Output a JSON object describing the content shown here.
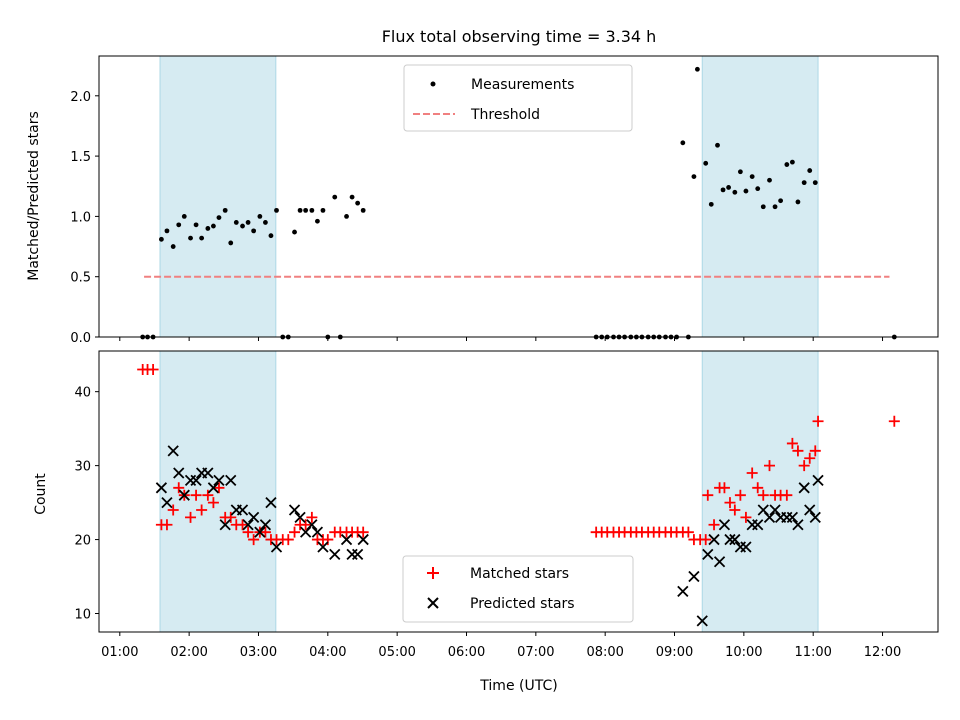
{
  "chart_data": {
    "title": "Flux total observing time = 3.34 h",
    "xlabel": "Time (UTC)",
    "x_ticks": [
      "01:00",
      "02:00",
      "03:00",
      "04:00",
      "05:00",
      "06:00",
      "07:00",
      "08:00",
      "09:00",
      "10:00",
      "11:00",
      "12:00"
    ],
    "x_range_hours": [
      0.7,
      12.8
    ],
    "observing_windows_hours": [
      [
        1.58,
        3.25
      ],
      [
        9.4,
        11.07
      ]
    ],
    "colors": {
      "window": "#add8e6",
      "measurement": "#000000",
      "threshold": "#f08080",
      "matched": "#ff0000",
      "predicted": "#000000"
    },
    "top": {
      "type": "scatter",
      "ylabel": "Matched/Predicted stars",
      "ylim": [
        0,
        2.33
      ],
      "y_ticks": [
        "0.0",
        "0.5",
        "1.0",
        "1.5",
        "2.0"
      ],
      "legend": {
        "measurements": "Measurements",
        "threshold": "Threshold"
      },
      "threshold": 0.5,
      "threshold_range_hours": [
        1.35,
        12.1
      ],
      "measurements": [
        [
          1.33,
          0
        ],
        [
          1.4,
          0
        ],
        [
          1.48,
          0
        ],
        [
          1.6,
          0.81
        ],
        [
          1.68,
          0.88
        ],
        [
          1.77,
          0.75
        ],
        [
          1.85,
          0.93
        ],
        [
          1.93,
          1.0
        ],
        [
          2.02,
          0.82
        ],
        [
          2.1,
          0.93
        ],
        [
          2.18,
          0.82
        ],
        [
          2.27,
          0.9
        ],
        [
          2.35,
          0.92
        ],
        [
          2.43,
          0.99
        ],
        [
          2.52,
          1.05
        ],
        [
          2.6,
          0.78
        ],
        [
          2.68,
          0.95
        ],
        [
          2.77,
          0.92
        ],
        [
          2.85,
          0.95
        ],
        [
          2.93,
          0.88
        ],
        [
          3.02,
          1.0
        ],
        [
          3.1,
          0.95
        ],
        [
          3.18,
          0.84
        ],
        [
          3.26,
          1.05
        ],
        [
          3.35,
          0
        ],
        [
          3.43,
          0
        ],
        [
          3.52,
          0.87
        ],
        [
          3.6,
          1.05
        ],
        [
          3.68,
          1.05
        ],
        [
          3.77,
          1.05
        ],
        [
          3.85,
          0.96
        ],
        [
          3.93,
          1.05
        ],
        [
          4.0,
          0
        ],
        [
          4.18,
          0
        ],
        [
          4.1,
          1.16
        ],
        [
          4.27,
          1.0
        ],
        [
          4.35,
          1.16
        ],
        [
          4.43,
          1.11
        ],
        [
          4.51,
          1.05
        ],
        [
          7.87,
          0
        ],
        [
          7.95,
          0
        ],
        [
          8.03,
          0
        ],
        [
          8.12,
          0
        ],
        [
          8.2,
          0
        ],
        [
          8.28,
          0
        ],
        [
          8.37,
          0
        ],
        [
          8.45,
          0
        ],
        [
          8.53,
          0
        ],
        [
          8.62,
          0
        ],
        [
          8.7,
          0
        ],
        [
          8.78,
          0
        ],
        [
          8.87,
          0
        ],
        [
          8.95,
          0
        ],
        [
          9.03,
          0
        ],
        [
          9.2,
          0
        ],
        [
          9.12,
          1.61
        ],
        [
          9.28,
          1.33
        ],
        [
          9.33,
          2.22
        ],
        [
          9.45,
          1.44
        ],
        [
          9.53,
          1.1
        ],
        [
          9.62,
          1.59
        ],
        [
          9.7,
          1.22
        ],
        [
          9.78,
          1.24
        ],
        [
          9.87,
          1.2
        ],
        [
          9.95,
          1.37
        ],
        [
          10.03,
          1.21
        ],
        [
          10.12,
          1.33
        ],
        [
          10.2,
          1.23
        ],
        [
          10.28,
          1.08
        ],
        [
          10.37,
          1.3
        ],
        [
          10.45,
          1.08
        ],
        [
          10.53,
          1.13
        ],
        [
          10.62,
          1.43
        ],
        [
          10.7,
          1.45
        ],
        [
          10.78,
          1.12
        ],
        [
          10.87,
          1.28
        ],
        [
          10.95,
          1.38
        ],
        [
          11.03,
          1.28
        ],
        [
          12.17,
          0
        ]
      ]
    },
    "bottom": {
      "type": "scatter",
      "ylabel": "Count",
      "ylim": [
        7.5,
        45.5
      ],
      "y_ticks": [
        "10",
        "20",
        "30",
        "40"
      ],
      "legend": {
        "matched": "Matched stars",
        "predicted": "Predicted stars"
      },
      "matched": [
        [
          1.33,
          43
        ],
        [
          1.4,
          43
        ],
        [
          1.48,
          43
        ],
        [
          1.6,
          22
        ],
        [
          1.68,
          22
        ],
        [
          1.77,
          24
        ],
        [
          1.85,
          27
        ],
        [
          1.93,
          26
        ],
        [
          2.02,
          23
        ],
        [
          2.1,
          26
        ],
        [
          2.18,
          24
        ],
        [
          2.27,
          26
        ],
        [
          2.35,
          25
        ],
        [
          2.43,
          27
        ],
        [
          2.52,
          23
        ],
        [
          2.6,
          23
        ],
        [
          2.68,
          22
        ],
        [
          2.77,
          22
        ],
        [
          2.85,
          21
        ],
        [
          2.93,
          20
        ],
        [
          3.02,
          21
        ],
        [
          3.1,
          21
        ],
        [
          3.18,
          20
        ],
        [
          3.26,
          20
        ],
        [
          3.35,
          20
        ],
        [
          3.43,
          20
        ],
        [
          3.52,
          21
        ],
        [
          3.6,
          22
        ],
        [
          3.68,
          22
        ],
        [
          3.77,
          23
        ],
        [
          3.85,
          20
        ],
        [
          3.93,
          20
        ],
        [
          4.0,
          20
        ],
        [
          4.1,
          21
        ],
        [
          4.18,
          21
        ],
        [
          4.27,
          21
        ],
        [
          4.35,
          21
        ],
        [
          4.43,
          21
        ],
        [
          4.51,
          21
        ],
        [
          7.87,
          21
        ],
        [
          7.95,
          21
        ],
        [
          8.03,
          21
        ],
        [
          8.12,
          21
        ],
        [
          8.2,
          21
        ],
        [
          8.28,
          21
        ],
        [
          8.37,
          21
        ],
        [
          8.45,
          21
        ],
        [
          8.53,
          21
        ],
        [
          8.62,
          21
        ],
        [
          8.7,
          21
        ],
        [
          8.78,
          21
        ],
        [
          8.87,
          21
        ],
        [
          8.95,
          21
        ],
        [
          9.03,
          21
        ],
        [
          9.12,
          21
        ],
        [
          9.2,
          21
        ],
        [
          9.28,
          20
        ],
        [
          9.37,
          20
        ],
        [
          9.45,
          20
        ],
        [
          9.48,
          26
        ],
        [
          9.57,
          22
        ],
        [
          9.65,
          27
        ],
        [
          9.72,
          27
        ],
        [
          9.8,
          25
        ],
        [
          9.87,
          24
        ],
        [
          9.95,
          26
        ],
        [
          10.03,
          23
        ],
        [
          10.12,
          29
        ],
        [
          10.2,
          27
        ],
        [
          10.28,
          26
        ],
        [
          10.37,
          30
        ],
        [
          10.45,
          26
        ],
        [
          10.53,
          26
        ],
        [
          10.62,
          26
        ],
        [
          10.7,
          33
        ],
        [
          10.78,
          32
        ],
        [
          10.87,
          30
        ],
        [
          10.95,
          31
        ],
        [
          11.03,
          32
        ],
        [
          11.07,
          36
        ],
        [
          12.17,
          36
        ]
      ],
      "predicted": [
        [
          1.6,
          27
        ],
        [
          1.68,
          25
        ],
        [
          1.77,
          32
        ],
        [
          1.85,
          29
        ],
        [
          1.93,
          26
        ],
        [
          2.02,
          28
        ],
        [
          2.1,
          28
        ],
        [
          2.18,
          29
        ],
        [
          2.27,
          29
        ],
        [
          2.35,
          27
        ],
        [
          2.43,
          28
        ],
        [
          2.52,
          22
        ],
        [
          2.6,
          28
        ],
        [
          2.68,
          24
        ],
        [
          2.77,
          24
        ],
        [
          2.85,
          22
        ],
        [
          2.93,
          23
        ],
        [
          3.02,
          21
        ],
        [
          3.1,
          22
        ],
        [
          3.18,
          25
        ],
        [
          3.26,
          19
        ],
        [
          3.52,
          24
        ],
        [
          3.6,
          23
        ],
        [
          3.68,
          21
        ],
        [
          3.77,
          22
        ],
        [
          3.85,
          21
        ],
        [
          3.93,
          19
        ],
        [
          4.1,
          18
        ],
        [
          4.27,
          20
        ],
        [
          4.35,
          18
        ],
        [
          4.43,
          18
        ],
        [
          4.51,
          20
        ],
        [
          9.12,
          13
        ],
        [
          9.28,
          15
        ],
        [
          9.4,
          9
        ],
        [
          9.48,
          18
        ],
        [
          9.57,
          20
        ],
        [
          9.65,
          17
        ],
        [
          9.72,
          22
        ],
        [
          9.8,
          20
        ],
        [
          9.87,
          20
        ],
        [
          9.95,
          19
        ],
        [
          10.03,
          19
        ],
        [
          10.12,
          22
        ],
        [
          10.2,
          22
        ],
        [
          10.28,
          24
        ],
        [
          10.37,
          23
        ],
        [
          10.45,
          24
        ],
        [
          10.53,
          23
        ],
        [
          10.62,
          23
        ],
        [
          10.7,
          23
        ],
        [
          10.78,
          22
        ],
        [
          10.87,
          27
        ],
        [
          10.95,
          24
        ],
        [
          11.03,
          23
        ],
        [
          11.07,
          28
        ]
      ]
    }
  }
}
